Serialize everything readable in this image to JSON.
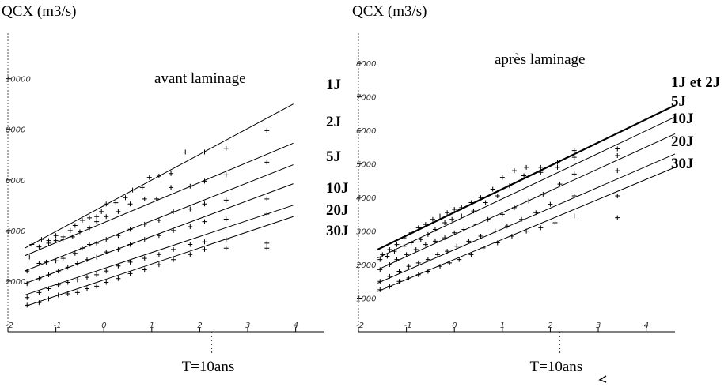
{
  "chart_data": [
    {
      "type": "scatter",
      "ylabel": "QCX (m3/s)",
      "title": "avant laminage",
      "xticks": [
        {
          "v": -2,
          "label": "-2"
        },
        {
          "v": -1,
          "label": "-1"
        },
        {
          "v": 0,
          "label": "0"
        },
        {
          "v": 1,
          "label": "1"
        },
        {
          "v": 2,
          "label": "2"
        },
        {
          "v": 3,
          "label": "3"
        },
        {
          "v": 4,
          "label": "4"
        }
      ],
      "yticks": [
        {
          "v": 2000,
          "label": "2000"
        },
        {
          "v": 4000,
          "label": "4000"
        },
        {
          "v": 6000,
          "label": "6000"
        },
        {
          "v": 8000,
          "label": "8000"
        },
        {
          "v": 10000,
          "label": "10000"
        }
      ],
      "xlim": [
        -2.0,
        4.6
      ],
      "ylim": [
        0,
        11800
      ],
      "marker_label": "T=10ans",
      "marker_x": 2.25,
      "series": [
        {
          "name": "1J",
          "line": {
            "x0": -1.65,
            "y0": 3300,
            "x1": 3.95,
            "y1": 9000
          },
          "points": [
            [
              -1.5,
              3450
            ],
            [
              -1.3,
              3650
            ],
            [
              -1.15,
              3600
            ],
            [
              -1.0,
              3800
            ],
            [
              -0.85,
              3750
            ],
            [
              -0.7,
              4000
            ],
            [
              -0.6,
              4200
            ],
            [
              -0.45,
              4400
            ],
            [
              -0.3,
              4500
            ],
            [
              -0.15,
              4550
            ],
            [
              -0.05,
              4750
            ],
            [
              0.05,
              5050
            ],
            [
              0.25,
              5100
            ],
            [
              0.45,
              5300
            ],
            [
              0.6,
              5600
            ],
            [
              0.8,
              5700
            ],
            [
              0.95,
              6100
            ],
            [
              1.15,
              6150
            ],
            [
              1.4,
              6250
            ],
            [
              1.7,
              7100
            ],
            [
              2.1,
              7100
            ],
            [
              2.55,
              7250
            ],
            [
              3.4,
              7950
            ]
          ]
        },
        {
          "name": "2J",
          "line": {
            "x0": -1.65,
            "y0": 3000,
            "x1": 3.95,
            "y1": 7450
          },
          "points": [
            [
              -1.55,
              2950
            ],
            [
              -1.35,
              3350
            ],
            [
              -1.15,
              3500
            ],
            [
              -1.0,
              3600
            ],
            [
              -0.85,
              3650
            ],
            [
              -0.65,
              3750
            ],
            [
              -0.5,
              3950
            ],
            [
              -0.3,
              4100
            ],
            [
              -0.15,
              4350
            ],
            [
              0.05,
              4550
            ],
            [
              0.3,
              4750
            ],
            [
              0.55,
              5050
            ],
            [
              0.85,
              5250
            ],
            [
              1.1,
              5250
            ],
            [
              1.4,
              5700
            ],
            [
              1.8,
              5750
            ],
            [
              2.1,
              5950
            ],
            [
              2.55,
              6200
            ],
            [
              3.4,
              6700
            ]
          ]
        },
        {
          "name": "5J",
          "line": {
            "x0": -1.65,
            "y0": 2400,
            "x1": 3.95,
            "y1": 6600
          },
          "points": [
            [
              -1.6,
              2400
            ],
            [
              -1.35,
              2700
            ],
            [
              -1.2,
              2750
            ],
            [
              -1.0,
              2800
            ],
            [
              -0.85,
              2900
            ],
            [
              -0.6,
              3100
            ],
            [
              -0.45,
              3300
            ],
            [
              -0.3,
              3450
            ],
            [
              -0.15,
              3500
            ],
            [
              0.05,
              3650
            ],
            [
              0.3,
              3800
            ],
            [
              0.55,
              4050
            ],
            [
              0.85,
              4250
            ],
            [
              1.15,
              4400
            ],
            [
              1.45,
              4750
            ],
            [
              1.8,
              4850
            ],
            [
              2.1,
              5050
            ],
            [
              2.55,
              5200
            ],
            [
              3.4,
              5250
            ]
          ]
        },
        {
          "name": "10J",
          "line": {
            "x0": -1.65,
            "y0": 1900,
            "x1": 3.95,
            "y1": 5850
          },
          "points": [
            [
              -1.6,
              1900
            ],
            [
              -1.35,
              2100
            ],
            [
              -1.15,
              2250
            ],
            [
              -0.95,
              2400
            ],
            [
              -0.75,
              2550
            ],
            [
              -0.55,
              2700
            ],
            [
              -0.35,
              2850
            ],
            [
              -0.15,
              2950
            ],
            [
              0.05,
              3150
            ],
            [
              0.3,
              3250
            ],
            [
              0.55,
              3450
            ],
            [
              0.85,
              3650
            ],
            [
              1.15,
              3800
            ],
            [
              1.45,
              4000
            ],
            [
              1.8,
              4150
            ],
            [
              2.1,
              4350
            ],
            [
              2.55,
              4450
            ],
            [
              3.4,
              4650
            ]
          ]
        },
        {
          "name": "20J",
          "line": {
            "x0": -1.65,
            "y0": 1450,
            "x1": 3.95,
            "y1": 5000
          },
          "points": [
            [
              -1.6,
              1350
            ],
            [
              -1.35,
              1550
            ],
            [
              -1.15,
              1700
            ],
            [
              -0.95,
              1850
            ],
            [
              -0.75,
              1950
            ],
            [
              -0.55,
              2050
            ],
            [
              -0.35,
              2150
            ],
            [
              -0.15,
              2250
            ],
            [
              0.05,
              2400
            ],
            [
              0.3,
              2600
            ],
            [
              0.55,
              2750
            ],
            [
              0.85,
              2900
            ],
            [
              1.15,
              3050
            ],
            [
              1.45,
              3250
            ],
            [
              1.8,
              3450
            ],
            [
              2.1,
              3550
            ],
            [
              2.55,
              3650
            ],
            [
              3.4,
              3500
            ]
          ]
        },
        {
          "name": "30J",
          "line": {
            "x0": -1.65,
            "y0": 1000,
            "x1": 3.95,
            "y1": 4550
          },
          "points": [
            [
              -1.6,
              1050
            ],
            [
              -1.35,
              1150
            ],
            [
              -1.15,
              1300
            ],
            [
              -0.95,
              1450
            ],
            [
              -0.75,
              1500
            ],
            [
              -0.55,
              1550
            ],
            [
              -0.35,
              1700
            ],
            [
              -0.15,
              1800
            ],
            [
              0.05,
              1950
            ],
            [
              0.3,
              2100
            ],
            [
              0.55,
              2300
            ],
            [
              0.85,
              2450
            ],
            [
              1.15,
              2650
            ],
            [
              1.45,
              2850
            ],
            [
              1.8,
              3050
            ],
            [
              2.1,
              3250
            ],
            [
              2.55,
              3300
            ],
            [
              3.4,
              3300
            ]
          ]
        }
      ]
    },
    {
      "type": "scatter",
      "ylabel": "QCX (m3/s)",
      "title": "après laminage",
      "xticks": [
        {
          "v": -2,
          "label": "-2"
        },
        {
          "v": -1,
          "label": "-1"
        },
        {
          "v": 0,
          "label": "0"
        },
        {
          "v": 1,
          "label": "1"
        },
        {
          "v": 2,
          "label": "2"
        },
        {
          "v": 3,
          "label": "3"
        },
        {
          "v": 4,
          "label": "4"
        }
      ],
      "yticks": [
        {
          "v": 1000,
          "label": "1000"
        },
        {
          "v": 2000,
          "label": "2000"
        },
        {
          "v": 3000,
          "label": "3000"
        },
        {
          "v": 4000,
          "label": "4000"
        },
        {
          "v": 5000,
          "label": "5000"
        },
        {
          "v": 6000,
          "label": "6000"
        },
        {
          "v": 7000,
          "label": "7000"
        },
        {
          "v": 8000,
          "label": "8000"
        }
      ],
      "xlim": [
        -2.0,
        4.6
      ],
      "ylim": [
        0,
        8900
      ],
      "marker_label": "T=10ans",
      "marker_x": 2.2,
      "series": [
        {
          "name": "1J et 2J",
          "bold": true,
          "line": {
            "x0": -1.6,
            "y0": 2450,
            "x1": 4.6,
            "y1": 6750
          },
          "points": [
            [
              -1.5,
              2300
            ],
            [
              -1.35,
              2450
            ],
            [
              -1.2,
              2600
            ],
            [
              -1.05,
              2800
            ],
            [
              -0.9,
              2950
            ],
            [
              -0.75,
              3100
            ],
            [
              -0.6,
              3200
            ],
            [
              -0.45,
              3350
            ],
            [
              -0.3,
              3450
            ],
            [
              -0.15,
              3550
            ],
            [
              0.0,
              3650
            ],
            [
              0.15,
              3700
            ],
            [
              0.35,
              3850
            ],
            [
              0.55,
              4000
            ],
            [
              0.8,
              4250
            ],
            [
              1.0,
              4600
            ],
            [
              1.25,
              4800
            ],
            [
              1.5,
              4900
            ],
            [
              1.8,
              4900
            ],
            [
              2.15,
              5050
            ],
            [
              2.5,
              5400
            ],
            [
              3.4,
              5450
            ]
          ]
        },
        {
          "name": "5J",
          "line": {
            "x0": -1.6,
            "y0": 2200,
            "x1": 4.6,
            "y1": 6400
          },
          "points": [
            [
              -1.55,
              2150
            ],
            [
              -1.4,
              2250
            ],
            [
              -1.25,
              2400
            ],
            [
              -1.05,
              2550
            ],
            [
              -0.9,
              2650
            ],
            [
              -0.7,
              2750
            ],
            [
              -0.55,
              2900
            ],
            [
              -0.4,
              3050
            ],
            [
              -0.2,
              3250
            ],
            [
              -0.05,
              3350
            ],
            [
              0.15,
              3450
            ],
            [
              0.4,
              3600
            ],
            [
              0.65,
              3850
            ],
            [
              0.9,
              4050
            ],
            [
              1.15,
              4350
            ],
            [
              1.45,
              4650
            ],
            [
              1.8,
              4750
            ],
            [
              2.15,
              4900
            ],
            [
              2.5,
              5200
            ],
            [
              3.4,
              5250
            ]
          ]
        },
        {
          "name": "10J",
          "line": {
            "x0": -1.6,
            "y0": 1850,
            "x1": 4.6,
            "y1": 5900
          },
          "points": [
            [
              -1.55,
              1850
            ],
            [
              -1.35,
              2000
            ],
            [
              -1.2,
              2150
            ],
            [
              -1.0,
              2300
            ],
            [
              -0.8,
              2450
            ],
            [
              -0.6,
              2600
            ],
            [
              -0.4,
              2700
            ],
            [
              -0.2,
              2800
            ],
            [
              0.0,
              2950
            ],
            [
              0.2,
              3050
            ],
            [
              0.45,
              3200
            ],
            [
              0.7,
              3350
            ],
            [
              1.0,
              3500
            ],
            [
              1.25,
              3700
            ],
            [
              1.55,
              3900
            ],
            [
              1.85,
              4100
            ],
            [
              2.2,
              4400
            ],
            [
              2.5,
              4700
            ],
            [
              3.4,
              4800
            ]
          ]
        },
        {
          "name": "20J",
          "line": {
            "x0": -1.6,
            "y0": 1450,
            "x1": 4.6,
            "y1": 5300
          },
          "points": [
            [
              -1.55,
              1500
            ],
            [
              -1.35,
              1650
            ],
            [
              -1.15,
              1800
            ],
            [
              -0.95,
              1950
            ],
            [
              -0.75,
              2050
            ],
            [
              -0.55,
              2150
            ],
            [
              -0.35,
              2300
            ],
            [
              -0.15,
              2400
            ],
            [
              0.05,
              2550
            ],
            [
              0.3,
              2700
            ],
            [
              0.55,
              2850
            ],
            [
              0.85,
              3000
            ],
            [
              1.1,
              3150
            ],
            [
              1.4,
              3350
            ],
            [
              1.7,
              3550
            ],
            [
              2.0,
              3800
            ],
            [
              2.5,
              4050
            ],
            [
              3.4,
              4050
            ]
          ]
        },
        {
          "name": "30J",
          "line": {
            "x0": -1.6,
            "y0": 1200,
            "x1": 4.6,
            "y1": 4900
          },
          "points": [
            [
              -1.55,
              1250
            ],
            [
              -1.35,
              1350
            ],
            [
              -1.15,
              1500
            ],
            [
              -0.95,
              1600
            ],
            [
              -0.75,
              1700
            ],
            [
              -0.55,
              1800
            ],
            [
              -0.3,
              1950
            ],
            [
              -0.1,
              2050
            ],
            [
              0.1,
              2150
            ],
            [
              0.35,
              2300
            ],
            [
              0.6,
              2500
            ],
            [
              0.9,
              2650
            ],
            [
              1.2,
              2850
            ],
            [
              1.5,
              3000
            ],
            [
              1.8,
              3100
            ],
            [
              2.1,
              3250
            ],
            [
              2.5,
              3450
            ],
            [
              3.4,
              3400
            ]
          ]
        }
      ]
    }
  ]
}
